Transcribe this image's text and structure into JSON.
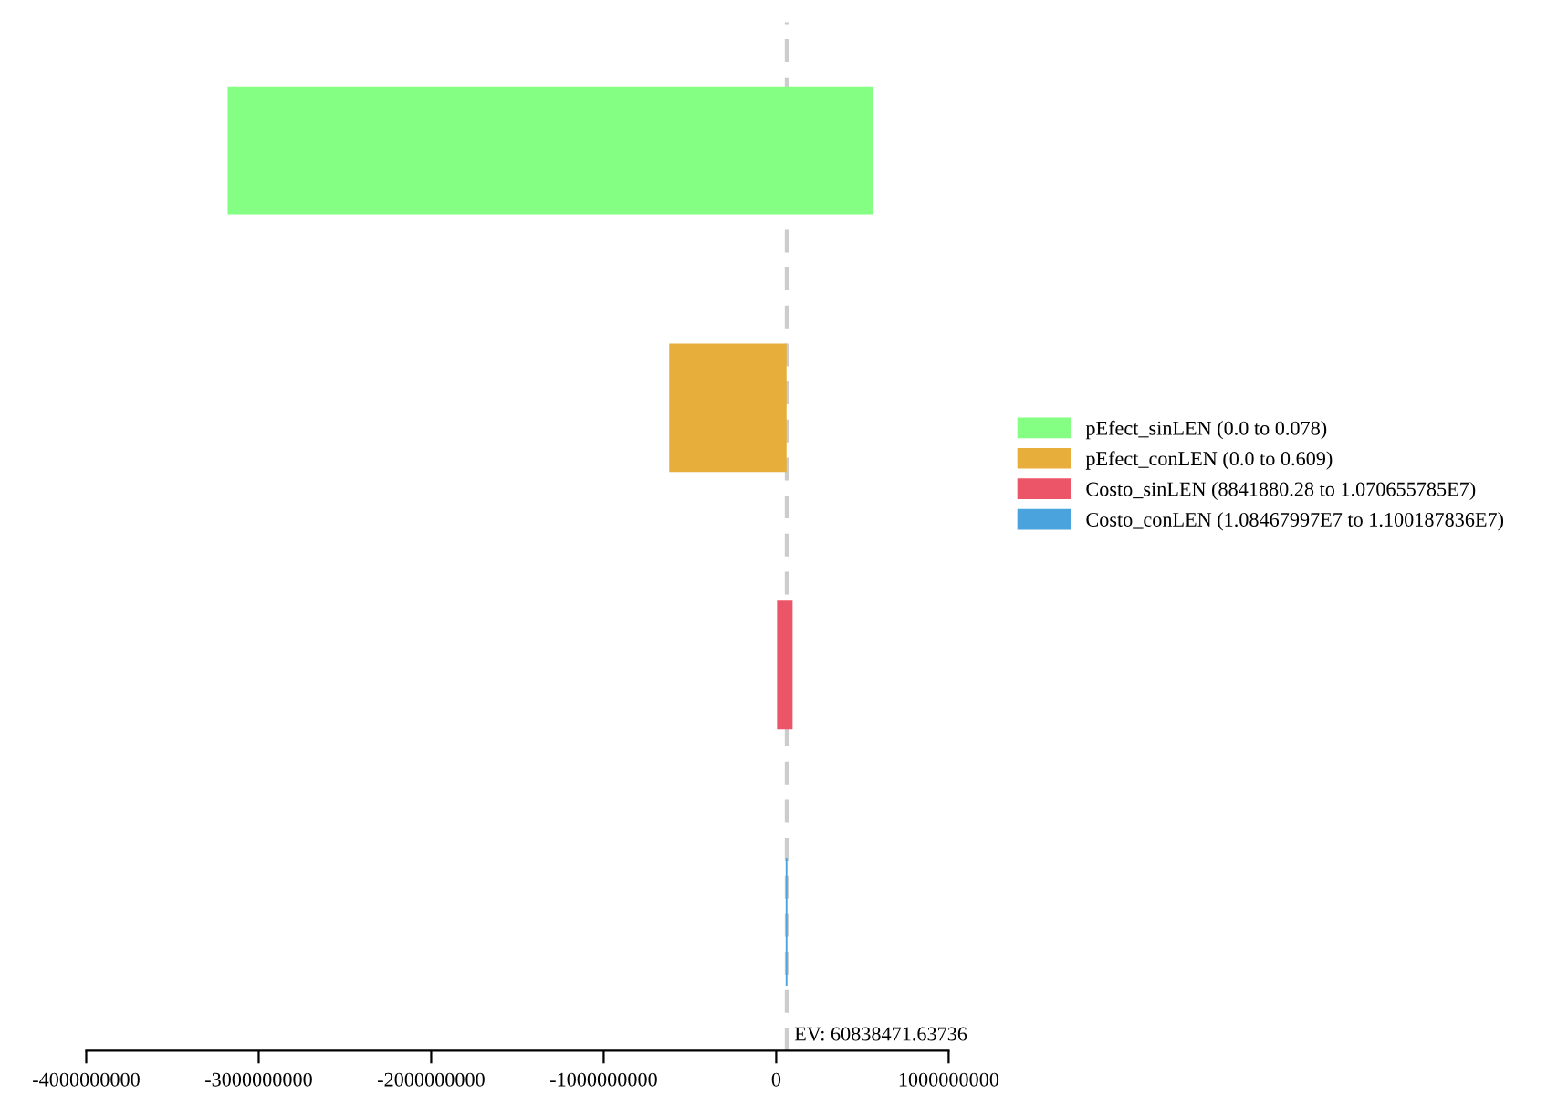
{
  "chart_data": {
    "type": "bar",
    "orientation": "horizontal",
    "categories": [
      null,
      null,
      null,
      null
    ],
    "series": [
      {
        "name": "pEfect_sinLEN (0.0 to 0.078)",
        "color": "#84ff84",
        "values": [
          3740000000,
          null,
          null,
          null
        ],
        "base": [
          -3180000000,
          null,
          null,
          null
        ]
      },
      {
        "name": "pEfect_conLEN (0.0 to 0.609)",
        "color": "#e8ae3c",
        "values": [
          null,
          680000000,
          null,
          null
        ],
        "base": [
          null,
          -620000000,
          null,
          null
        ]
      },
      {
        "name": "Costo_sinLEN (8841880.28 to 1.070655785E7)",
        "color": "#ec5468",
        "values": [
          null,
          null,
          90000000,
          null
        ],
        "base": [
          null,
          null,
          5000000,
          null
        ]
      },
      {
        "name": "Costo_conLEN (1.08467997E7 to 1.100187836E7)",
        "color": "#4aa3dc",
        "values": [
          null,
          null,
          null,
          10000000
        ],
        "base": [
          null,
          null,
          null,
          55000000
        ]
      }
    ],
    "xlim": [
      -4000000000,
      1000000000
    ],
    "xticks": [
      -4000000000,
      -3000000000,
      -2000000000,
      -1000000000,
      0,
      1000000000
    ],
    "ref_lines": [
      {
        "axis": "x",
        "value": 60838471.63736,
        "label": "EV: 60838471.63736",
        "color": "#cccccc",
        "line_style": "dashed"
      }
    ],
    "tick_labels": "x",
    "grid": false,
    "legend": "right"
  }
}
